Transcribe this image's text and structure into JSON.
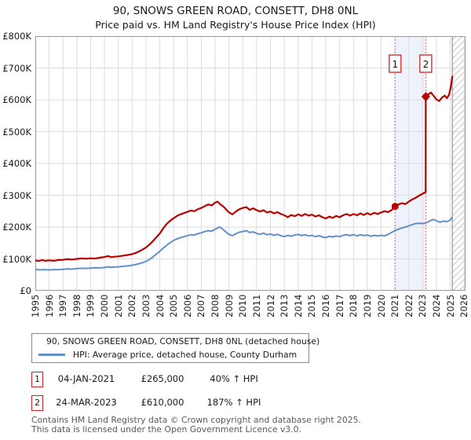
{
  "chart_data": {
    "type": "line",
    "title": "90, SNOWS GREEN ROAD, CONSETT, DH8 0NL",
    "subtitle": "Price paid vs. HM Land Registry's House Price Index (HPI)",
    "x_range": [
      1995,
      2026.1
    ],
    "y_range": [
      0,
      800
    ],
    "y_unit": "GBP thousands",
    "grid": true,
    "legend_position": "below",
    "x_ticks": [
      1995,
      1996,
      1997,
      1998,
      1999,
      2000,
      2001,
      2002,
      2003,
      2004,
      2005,
      2006,
      2007,
      2008,
      2009,
      2010,
      2011,
      2012,
      2013,
      2014,
      2015,
      2016,
      2017,
      2018,
      2019,
      2020,
      2021,
      2022,
      2023,
      2024,
      2025,
      2026
    ],
    "y_ticks": [
      {
        "value": 0,
        "label": "£0"
      },
      {
        "value": 100,
        "label": "£100K"
      },
      {
        "value": 200,
        "label": "£200K"
      },
      {
        "value": 300,
        "label": "£300K"
      },
      {
        "value": 400,
        "label": "£400K"
      },
      {
        "value": 500,
        "label": "£500K"
      },
      {
        "value": 600,
        "label": "£600K"
      },
      {
        "value": 700,
        "label": "£700K"
      },
      {
        "value": 800,
        "label": "£800K"
      }
    ],
    "series": [
      {
        "name": "90, SNOWS GREEN ROAD, CONSETT, DH8 0NL (detached house)",
        "color": "#bb0000",
        "width": 2.2,
        "points": [
          [
            1995.0,
            95
          ],
          [
            1995.25,
            93.5
          ],
          [
            1995.5,
            96
          ],
          [
            1995.75,
            94
          ],
          [
            1996.0,
            95.5
          ],
          [
            1996.33,
            94
          ],
          [
            1996.66,
            96.5
          ],
          [
            1997.0,
            97
          ],
          [
            1997.33,
            99
          ],
          [
            1997.66,
            98
          ],
          [
            1998.0,
            100
          ],
          [
            1998.33,
            101.5
          ],
          [
            1998.66,
            100.5
          ],
          [
            1999.0,
            102
          ],
          [
            1999.33,
            101
          ],
          [
            1999.66,
            104
          ],
          [
            2000.0,
            106
          ],
          [
            2000.25,
            109
          ],
          [
            2000.5,
            105.5
          ],
          [
            2000.75,
            107
          ],
          [
            2001.0,
            108
          ],
          [
            2001.33,
            110
          ],
          [
            2001.66,
            112
          ],
          [
            2002.0,
            115
          ],
          [
            2002.33,
            120
          ],
          [
            2002.66,
            127
          ],
          [
            2003.0,
            136
          ],
          [
            2003.25,
            145
          ],
          [
            2003.5,
            156
          ],
          [
            2003.75,
            168
          ],
          [
            2004.0,
            180
          ],
          [
            2004.25,
            196
          ],
          [
            2004.5,
            210
          ],
          [
            2004.75,
            220
          ],
          [
            2005.0,
            228
          ],
          [
            2005.25,
            235
          ],
          [
            2005.5,
            240
          ],
          [
            2005.75,
            244
          ],
          [
            2006.0,
            248
          ],
          [
            2006.25,
            252
          ],
          [
            2006.5,
            250
          ],
          [
            2006.75,
            256
          ],
          [
            2007.0,
            260
          ],
          [
            2007.25,
            266
          ],
          [
            2007.5,
            271
          ],
          [
            2007.75,
            268
          ],
          [
            2008.0,
            277
          ],
          [
            2008.17,
            280
          ],
          [
            2008.33,
            273
          ],
          [
            2008.58,
            265
          ],
          [
            2008.83,
            254
          ],
          [
            2009.0,
            246
          ],
          [
            2009.25,
            240
          ],
          [
            2009.5,
            249
          ],
          [
            2009.75,
            256
          ],
          [
            2010.0,
            260
          ],
          [
            2010.25,
            263
          ],
          [
            2010.5,
            254
          ],
          [
            2010.75,
            259
          ],
          [
            2011.0,
            253
          ],
          [
            2011.25,
            249
          ],
          [
            2011.5,
            253
          ],
          [
            2011.75,
            246
          ],
          [
            2012.0,
            249
          ],
          [
            2012.25,
            243
          ],
          [
            2012.5,
            247
          ],
          [
            2012.75,
            241
          ],
          [
            2013.0,
            237
          ],
          [
            2013.25,
            231
          ],
          [
            2013.5,
            238
          ],
          [
            2013.75,
            234
          ],
          [
            2014.0,
            240
          ],
          [
            2014.25,
            235
          ],
          [
            2014.5,
            241
          ],
          [
            2014.75,
            236
          ],
          [
            2015.0,
            239
          ],
          [
            2015.25,
            233
          ],
          [
            2015.5,
            237
          ],
          [
            2015.75,
            231
          ],
          [
            2016.0,
            227
          ],
          [
            2016.25,
            233
          ],
          [
            2016.5,
            229
          ],
          [
            2016.75,
            235
          ],
          [
            2017.0,
            231
          ],
          [
            2017.25,
            237
          ],
          [
            2017.5,
            241
          ],
          [
            2017.75,
            236
          ],
          [
            2018.0,
            241
          ],
          [
            2018.25,
            237
          ],
          [
            2018.5,
            243
          ],
          [
            2018.75,
            238
          ],
          [
            2019.0,
            244
          ],
          [
            2019.25,
            239
          ],
          [
            2019.5,
            245
          ],
          [
            2019.75,
            241
          ],
          [
            2020.0,
            246
          ],
          [
            2020.25,
            250
          ],
          [
            2020.5,
            247
          ],
          [
            2020.75,
            253
          ],
          [
            2021.01,
            265
          ],
          [
            2021.25,
            271
          ],
          [
            2021.5,
            275
          ],
          [
            2021.75,
            272
          ],
          [
            2022.0,
            280
          ],
          [
            2022.25,
            287
          ],
          [
            2022.5,
            292
          ],
          [
            2022.75,
            299
          ],
          [
            2023.0,
            305
          ],
          [
            2023.22,
            310
          ],
          [
            2023.23,
            610
          ],
          [
            2023.4,
            616
          ],
          [
            2023.6,
            623
          ],
          [
            2023.8,
            612
          ],
          [
            2024.0,
            601
          ],
          [
            2024.2,
            596
          ],
          [
            2024.4,
            607
          ],
          [
            2024.6,
            613
          ],
          [
            2024.75,
            605
          ],
          [
            2024.9,
            615
          ],
          [
            2025.0,
            632
          ],
          [
            2025.08,
            652
          ],
          [
            2025.15,
            675
          ]
        ]
      },
      {
        "name": "HPI: Average price, detached house, County Durham",
        "color": "#6191c8",
        "width": 2,
        "points": [
          [
            1995.0,
            67
          ],
          [
            1995.33,
            65.5
          ],
          [
            1995.66,
            66.5
          ],
          [
            1996.0,
            65.5
          ],
          [
            1996.33,
            66.5
          ],
          [
            1996.66,
            66
          ],
          [
            1997.0,
            67.5
          ],
          [
            1997.33,
            68.5
          ],
          [
            1997.66,
            68
          ],
          [
            1998.0,
            69.5
          ],
          [
            1998.33,
            70.5
          ],
          [
            1998.66,
            70
          ],
          [
            1999.0,
            71
          ],
          [
            1999.33,
            72
          ],
          [
            1999.66,
            71.5
          ],
          [
            2000.0,
            73
          ],
          [
            2000.25,
            75
          ],
          [
            2000.5,
            73.5
          ],
          [
            2000.75,
            74.5
          ],
          [
            2001.0,
            75
          ],
          [
            2001.33,
            76.5
          ],
          [
            2001.66,
            78
          ],
          [
            2002.0,
            80
          ],
          [
            2002.33,
            83
          ],
          [
            2002.66,
            87
          ],
          [
            2003.0,
            92
          ],
          [
            2003.25,
            98
          ],
          [
            2003.5,
            106
          ],
          [
            2003.75,
            115
          ],
          [
            2004.0,
            124
          ],
          [
            2004.25,
            134
          ],
          [
            2004.5,
            143
          ],
          [
            2004.75,
            151
          ],
          [
            2005.0,
            158
          ],
          [
            2005.25,
            163
          ],
          [
            2005.5,
            167
          ],
          [
            2005.75,
            170
          ],
          [
            2006.0,
            173
          ],
          [
            2006.25,
            176
          ],
          [
            2006.5,
            175
          ],
          [
            2006.75,
            179
          ],
          [
            2007.0,
            182
          ],
          [
            2007.25,
            186
          ],
          [
            2007.5,
            189
          ],
          [
            2007.75,
            187
          ],
          [
            2008.0,
            193
          ],
          [
            2008.17,
            197
          ],
          [
            2008.33,
            200
          ],
          [
            2008.58,
            192
          ],
          [
            2008.83,
            183
          ],
          [
            2009.0,
            177
          ],
          [
            2009.25,
            173
          ],
          [
            2009.5,
            179
          ],
          [
            2009.75,
            184
          ],
          [
            2010.0,
            186
          ],
          [
            2010.25,
            189
          ],
          [
            2010.5,
            183
          ],
          [
            2010.75,
            185
          ],
          [
            2011.0,
            180
          ],
          [
            2011.25,
            177
          ],
          [
            2011.5,
            181
          ],
          [
            2011.75,
            176
          ],
          [
            2012.0,
            178
          ],
          [
            2012.25,
            174
          ],
          [
            2012.5,
            177
          ],
          [
            2012.75,
            173
          ],
          [
            2013.0,
            170
          ],
          [
            2013.25,
            174
          ],
          [
            2013.5,
            171
          ],
          [
            2013.75,
            175
          ],
          [
            2014.0,
            177
          ],
          [
            2014.25,
            173
          ],
          [
            2014.5,
            176
          ],
          [
            2014.75,
            172
          ],
          [
            2015.0,
            174
          ],
          [
            2015.25,
            170
          ],
          [
            2015.5,
            173
          ],
          [
            2015.75,
            169
          ],
          [
            2016.0,
            167
          ],
          [
            2016.25,
            171
          ],
          [
            2016.5,
            169
          ],
          [
            2016.75,
            172
          ],
          [
            2017.0,
            170
          ],
          [
            2017.25,
            174
          ],
          [
            2017.5,
            176
          ],
          [
            2017.75,
            173
          ],
          [
            2018.0,
            176
          ],
          [
            2018.25,
            172
          ],
          [
            2018.5,
            176
          ],
          [
            2018.75,
            173
          ],
          [
            2019.0,
            175
          ],
          [
            2019.25,
            171
          ],
          [
            2019.5,
            174
          ],
          [
            2019.75,
            172
          ],
          [
            2020.0,
            174
          ],
          [
            2020.25,
            172
          ],
          [
            2020.5,
            177
          ],
          [
            2020.75,
            183
          ],
          [
            2021.0,
            189
          ],
          [
            2021.25,
            193
          ],
          [
            2021.5,
            197
          ],
          [
            2021.75,
            200
          ],
          [
            2022.0,
            204
          ],
          [
            2022.25,
            208
          ],
          [
            2022.5,
            211
          ],
          [
            2022.75,
            212
          ],
          [
            2023.0,
            211
          ],
          [
            2023.25,
            213
          ],
          [
            2023.5,
            219
          ],
          [
            2023.75,
            224
          ],
          [
            2024.0,
            220
          ],
          [
            2024.25,
            215
          ],
          [
            2024.5,
            219
          ],
          [
            2024.75,
            217
          ],
          [
            2025.0,
            222
          ],
          [
            2025.15,
            231
          ]
        ]
      }
    ],
    "sale_markers": [
      {
        "label": "1",
        "x": 2021.01,
        "y": 265,
        "shape": "circle"
      },
      {
        "label": "2",
        "x": 2023.23,
        "y": 610,
        "shape": "diamond"
      }
    ],
    "shaded_span": [
      2021.01,
      2023.23
    ],
    "hatch_span": [
      2025.15,
      2026.1
    ],
    "colors": {
      "grid": "#dcdcdc",
      "border": "#9a9a9a",
      "shade": "#eef2fb",
      "dashed_line": "#dd4444",
      "hatch": "#c8c8c8",
      "marker_box_border": "#cc2222"
    }
  },
  "annotations": {
    "rows": [
      {
        "num": "1",
        "date": "04-JAN-2021",
        "price": "£265,000",
        "delta": "40% ↑ HPI"
      },
      {
        "num": "2",
        "date": "24-MAR-2023",
        "price": "£610,000",
        "delta": "187% ↑ HPI"
      }
    ]
  },
  "footer": {
    "line1": "Contains HM Land Registry data © Crown copyright and database right 2025.",
    "line2": "This data is licensed under the Open Government Licence v3.0."
  }
}
